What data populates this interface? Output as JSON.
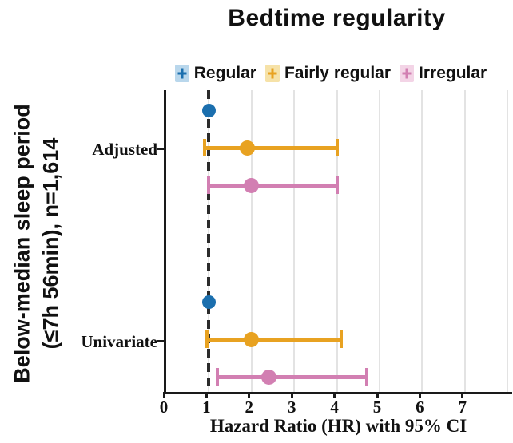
{
  "title": "Bedtime regularity",
  "left_axis": {
    "line1": "Below-median sleep period",
    "line2": "(≤7h 56min), n=1,614"
  },
  "legend": {
    "items": [
      {
        "label": "Regular",
        "color": "#1b6fae",
        "tint": "#b9d7ec"
      },
      {
        "label": "Fairly regular",
        "color": "#e8a221",
        "tint": "#f6e2a8"
      },
      {
        "label": "Irregular",
        "color": "#d27fb2",
        "tint": "#f3d4e6"
      }
    ]
  },
  "x_axis": {
    "title": "Hazard Ratio (HR) with 95% CI",
    "tick_labels": [
      "0",
      "1",
      "2",
      "3",
      "4",
      "5",
      "6",
      "7"
    ]
  },
  "chart_data": {
    "type": "forest",
    "title": "Bedtime regularity",
    "xlabel": "Hazard Ratio (HR) with 95% CI",
    "xlim": [
      0,
      8.1
    ],
    "x_ticks": [
      0,
      1,
      2,
      3,
      4,
      5,
      6,
      7
    ],
    "gridlines_at": [
      1,
      2,
      3,
      4,
      5,
      6,
      7,
      8
    ],
    "reference_line": 1.0,
    "grid": true,
    "legend_position": "top",
    "group_axis_label": "Below-median sleep period (≤7h 56min), n=1,614",
    "series": [
      "Regular",
      "Fairly regular",
      "Irregular"
    ],
    "groups": [
      {
        "label": "Adjusted",
        "estimates": [
          {
            "series": "Regular",
            "hr": 1.0,
            "ci_low": null,
            "ci_high": null
          },
          {
            "series": "Fairly regular",
            "hr": 1.9,
            "ci_low": 0.9,
            "ci_high": 4.0
          },
          {
            "series": "Irregular",
            "hr": 2.0,
            "ci_low": 1.0,
            "ci_high": 4.0
          }
        ]
      },
      {
        "label": "Univariate",
        "estimates": [
          {
            "series": "Regular",
            "hr": 1.0,
            "ci_low": null,
            "ci_high": null
          },
          {
            "series": "Fairly regular",
            "hr": 2.0,
            "ci_low": 0.95,
            "ci_high": 4.1
          },
          {
            "series": "Irregular",
            "hr": 2.4,
            "ci_low": 1.2,
            "ci_high": 4.7
          }
        ]
      }
    ]
  }
}
